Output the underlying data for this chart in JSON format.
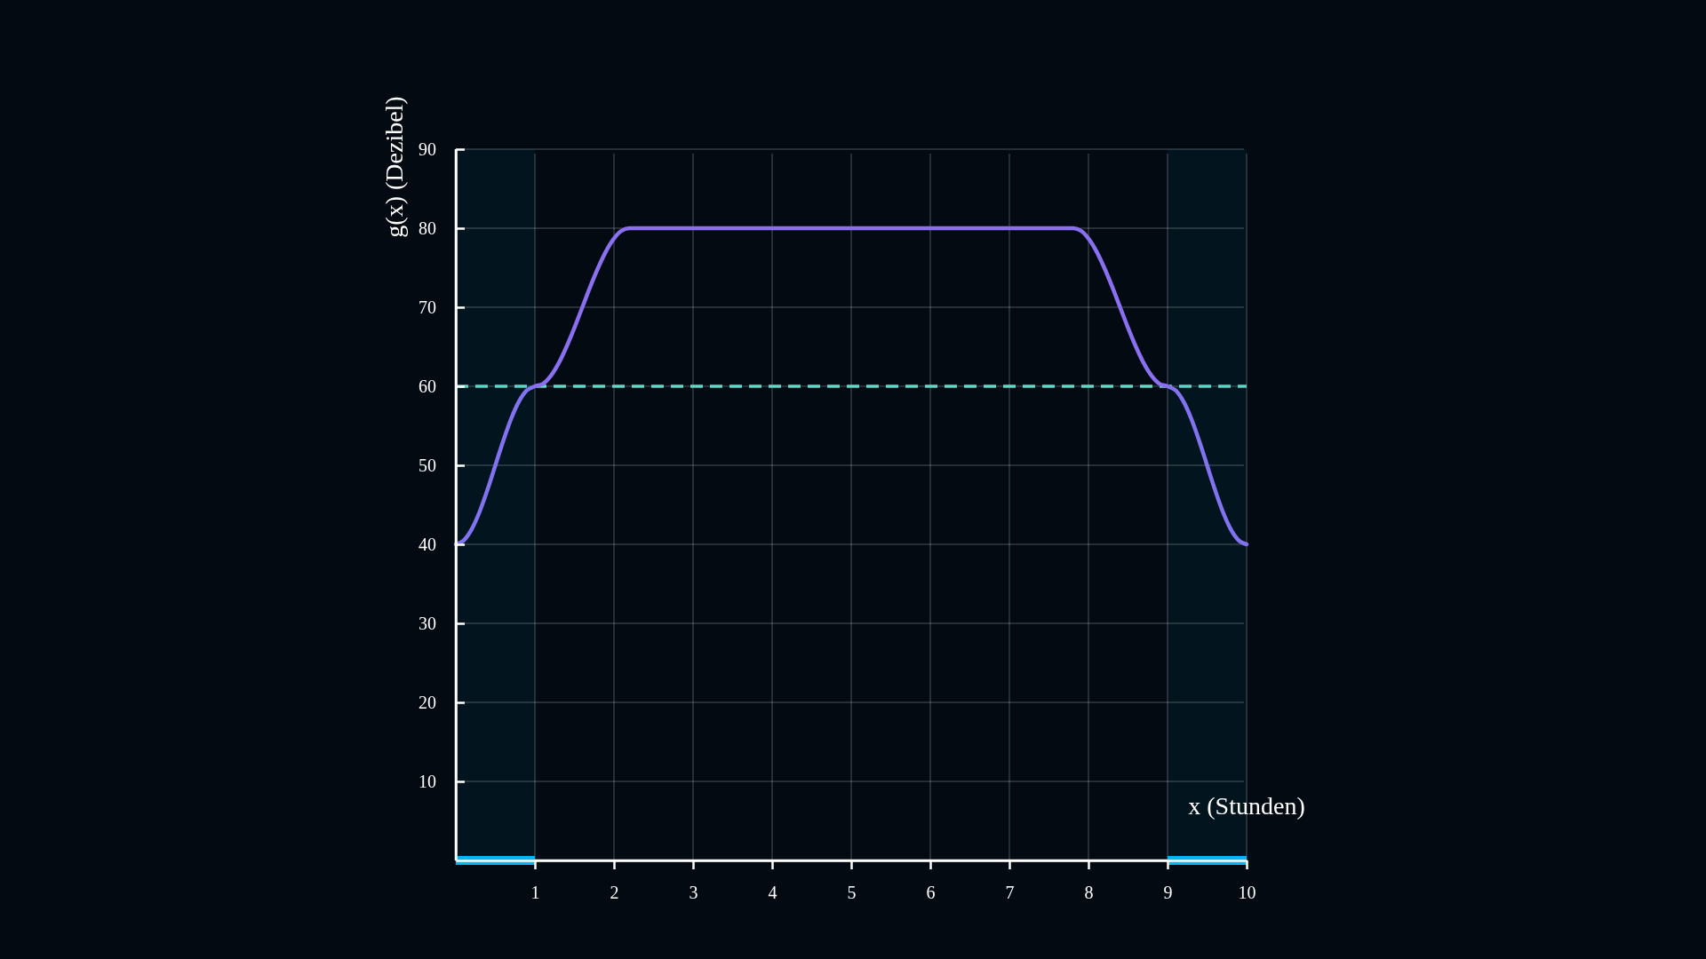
{
  "chart_data": {
    "type": "line",
    "xlabel": "x (Stunden)",
    "ylabel": "g(x) (Dezibel)",
    "x": [
      0,
      0.1,
      0.2,
      0.3,
      0.4,
      0.5,
      0.6,
      0.7,
      0.8,
      0.9,
      1,
      1.1,
      1.2,
      1.3,
      1.4,
      1.5,
      1.6,
      1.7,
      1.8,
      1.9,
      2,
      2.1,
      2.2,
      5,
      7.8,
      7.9,
      8,
      8.1,
      8.2,
      8.3,
      8.4,
      8.5,
      8.6,
      8.7,
      8.8,
      8.9,
      9,
      9.1,
      9.2,
      9.3,
      9.4,
      9.5,
      9.6,
      9.7,
      9.8,
      9.9,
      10
    ],
    "series": [
      {
        "color": "#8a6ff0",
        "values": [
          40,
          40.5,
          41.9,
          44.1,
          46.9,
          50,
          53.1,
          55.9,
          58.1,
          59.5,
          60,
          60.3,
          61.3,
          62.9,
          65,
          67.4,
          70,
          72.6,
          75,
          77.1,
          78.7,
          79.7,
          80,
          80,
          80,
          79.7,
          78.7,
          77.1,
          75,
          72.6,
          70,
          67.4,
          65,
          62.9,
          61.3,
          60.3,
          60,
          59.5,
          58.1,
          55.9,
          53.1,
          50,
          46.9,
          44.1,
          41.9,
          40.5,
          40
        ]
      }
    ],
    "xlim": [
      0,
      10
    ],
    "xticks": [
      1,
      2,
      3,
      4,
      5,
      6,
      7,
      8,
      9,
      10
    ],
    "ylim": [
      0,
      90
    ],
    "yticks": [
      10,
      20,
      30,
      40,
      50,
      60,
      70,
      80,
      90
    ],
    "grid": true,
    "marker": "none",
    "line_style": "solid",
    "ref_lines": [
      {
        "axis": "y",
        "value": 60,
        "color": "#5fd8c4",
        "line_style": "dashed"
      }
    ],
    "bands": [
      {
        "axis": "x",
        "from": 0,
        "to": 1,
        "color": "#00b7f5"
      },
      {
        "axis": "x",
        "from": 9,
        "to": 10,
        "color": "#00b7f5"
      }
    ]
  }
}
